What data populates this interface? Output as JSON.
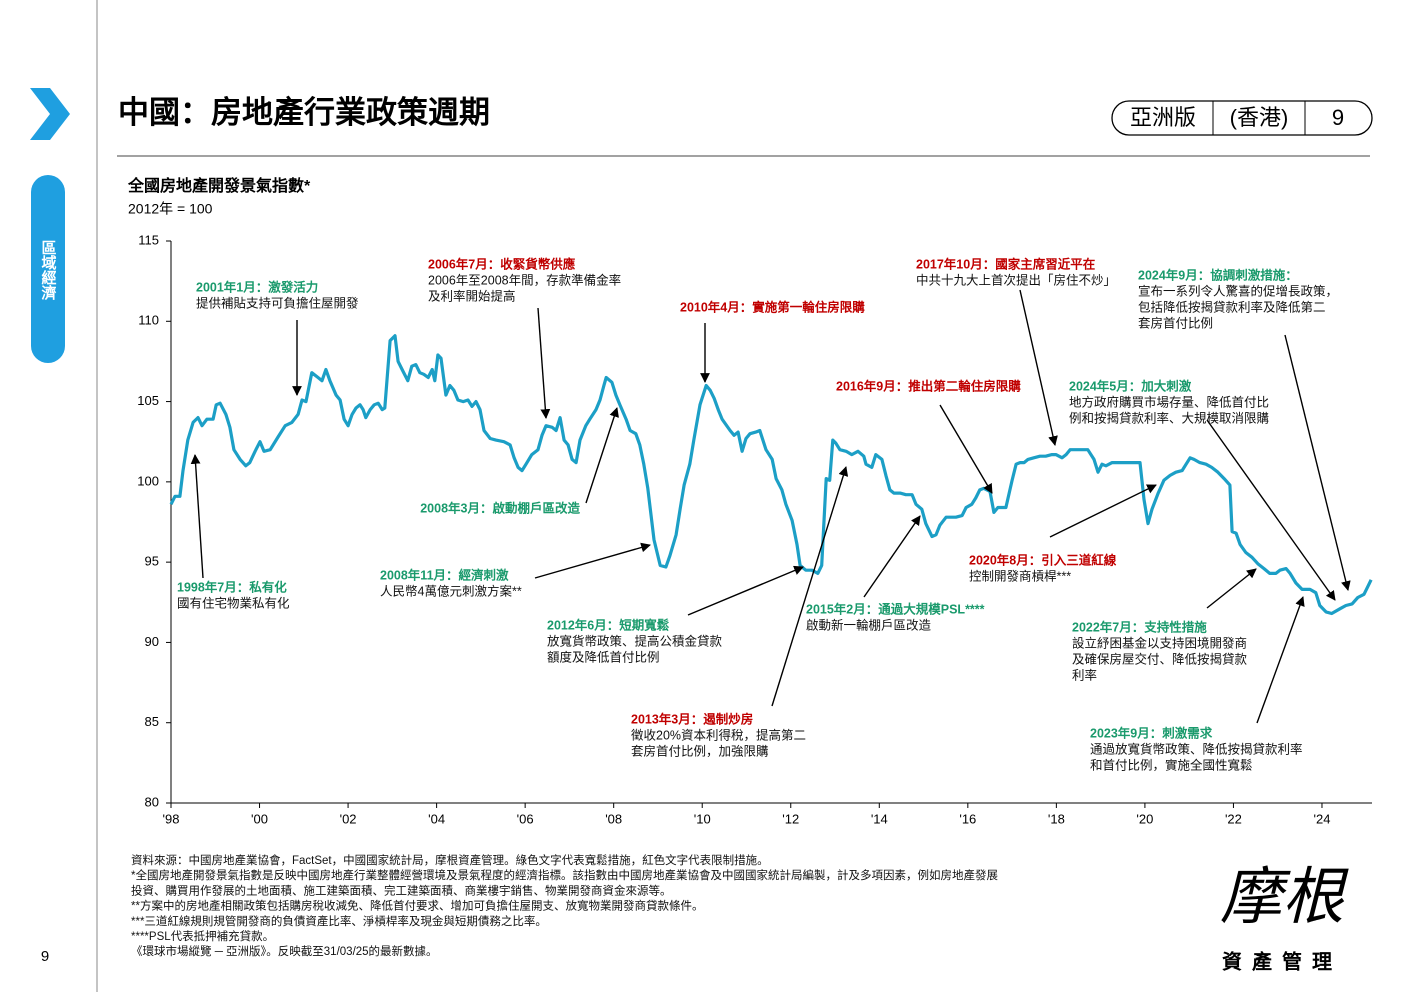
{
  "header": {
    "title": "中國：房地產行業政策週期",
    "edition": "亞洲版",
    "region": "(香港)",
    "page": "9"
  },
  "sidebar": {
    "label": "區域經濟"
  },
  "chart_data": {
    "type": "line",
    "title": "全國房地產開發景氣指數*",
    "subtitle": "2012年 = 100",
    "color": "#1c9fc6",
    "xlim": [
      1998,
      2025.13
    ],
    "ylim": [
      80,
      115
    ],
    "xticks": [
      {
        "value": 1998,
        "label": "'98"
      },
      {
        "value": 2000,
        "label": "'00"
      },
      {
        "value": 2002,
        "label": "'02"
      },
      {
        "value": 2004,
        "label": "'04"
      },
      {
        "value": 2006,
        "label": "'06"
      },
      {
        "value": 2008,
        "label": "'08"
      },
      {
        "value": 2010,
        "label": "'10"
      },
      {
        "value": 2012,
        "label": "'12"
      },
      {
        "value": 2014,
        "label": "'14"
      },
      {
        "value": 2016,
        "label": "'16"
      },
      {
        "value": 2018,
        "label": "'18"
      },
      {
        "value": 2020,
        "label": "'20"
      },
      {
        "value": 2022,
        "label": "'22"
      },
      {
        "value": 2024,
        "label": "'24"
      }
    ],
    "yticks": [
      80,
      85,
      90,
      95,
      100,
      105,
      110,
      115
    ],
    "x": [
      1998.0,
      1998.09,
      1998.2,
      1998.27,
      1998.38,
      1998.5,
      1998.61,
      1998.7,
      1998.81,
      1998.95,
      1999.02,
      1999.11,
      1999.24,
      1999.33,
      1999.42,
      1999.56,
      1999.69,
      1999.78,
      1999.9,
      2000.01,
      2000.1,
      2000.24,
      2000.42,
      2000.58,
      2000.73,
      2000.87,
      2000.96,
      2001.05,
      2001.18,
      2001.32,
      2001.41,
      2001.5,
      2001.59,
      2001.73,
      2001.82,
      2001.91,
      2002.0,
      2002.09,
      2002.18,
      2002.27,
      2002.34,
      2002.4,
      2002.5,
      2002.59,
      2002.68,
      2002.77,
      2002.83,
      2002.95,
      2003.06,
      2003.13,
      2003.22,
      2003.35,
      2003.44,
      2003.53,
      2003.62,
      2003.71,
      2003.81,
      2003.9,
      2003.96,
      2004.03,
      2004.1,
      2004.21,
      2004.3,
      2004.39,
      2004.48,
      2004.6,
      2004.71,
      2004.8,
      2004.89,
      2004.98,
      2005.07,
      2005.21,
      2005.34,
      2005.52,
      2005.66,
      2005.75,
      2005.84,
      2005.93,
      2006.02,
      2006.15,
      2006.29,
      2006.38,
      2006.47,
      2006.61,
      2006.7,
      2006.79,
      2006.88,
      2006.97,
      2007.06,
      2007.15,
      2007.24,
      2007.37,
      2007.46,
      2007.6,
      2007.69,
      2007.78,
      2007.83,
      2007.96,
      2008.05,
      2008.14,
      2008.28,
      2008.37,
      2008.5,
      2008.59,
      2008.68,
      2008.77,
      2008.91,
      2009.05,
      2009.18,
      2009.27,
      2009.41,
      2009.5,
      2009.59,
      2009.72,
      2009.81,
      2009.95,
      2010.09,
      2010.18,
      2010.27,
      2010.36,
      2010.45,
      2010.63,
      2010.72,
      2010.81,
      2010.9,
      2010.99,
      2011.08,
      2011.21,
      2011.3,
      2011.44,
      2011.58,
      2011.67,
      2011.8,
      2011.89,
      2012.03,
      2012.14,
      2012.21,
      2012.34,
      2012.48,
      2012.61,
      2012.7,
      2012.8,
      2012.88,
      2012.95,
      2013.02,
      2013.11,
      2013.25,
      2013.38,
      2013.52,
      2013.65,
      2013.7,
      2013.83,
      2013.92,
      2014.06,
      2014.15,
      2014.24,
      2014.33,
      2014.47,
      2014.6,
      2014.74,
      2014.83,
      2014.96,
      2015.05,
      2015.19,
      2015.28,
      2015.37,
      2015.51,
      2015.6,
      2015.73,
      2015.87,
      2015.96,
      2016.09,
      2016.18,
      2016.27,
      2016.36,
      2016.5,
      2016.59,
      2016.68,
      2016.77,
      2016.86,
      2017.0,
      2017.09,
      2017.18,
      2017.27,
      2017.36,
      2017.49,
      2017.63,
      2017.76,
      2017.9,
      2017.99,
      2018.13,
      2018.22,
      2018.31,
      2018.44,
      2018.58,
      2018.71,
      2018.85,
      2018.94,
      2019.03,
      2019.12,
      2019.26,
      2019.39,
      2019.53,
      2019.66,
      2019.8,
      2019.89,
      2019.98,
      2020.07,
      2020.16,
      2020.3,
      2020.43,
      2020.57,
      2020.7,
      2020.84,
      2020.93,
      2021.02,
      2021.11,
      2021.24,
      2021.38,
      2021.51,
      2021.65,
      2021.79,
      2021.92,
      2021.97,
      2022.06,
      2022.15,
      2022.28,
      2022.42,
      2022.55,
      2022.69,
      2022.82,
      2022.96,
      2023.05,
      2023.19,
      2023.28,
      2023.41,
      2023.55,
      2023.73,
      2023.86,
      2023.95,
      2024.09,
      2024.22,
      2024.41,
      2024.54,
      2024.68,
      2024.81,
      2024.95,
      2025.04,
      2025.11
    ],
    "values": [
      98.6,
      99.1,
      99.1,
      100.7,
      102.6,
      103.7,
      104.0,
      103.5,
      103.9,
      103.9,
      104.8,
      104.9,
      104.2,
      103.4,
      102.0,
      101.4,
      101.0,
      101.2,
      101.9,
      102.5,
      101.9,
      102.0,
      102.8,
      103.5,
      103.7,
      104.2,
      105.1,
      105.0,
      106.8,
      106.5,
      106.3,
      107.0,
      106.3,
      105.4,
      105.1,
      103.9,
      103.5,
      104.2,
      104.6,
      104.8,
      104.5,
      104.0,
      104.5,
      104.8,
      104.9,
      104.5,
      104.6,
      108.8,
      109.1,
      107.5,
      107.0,
      106.3,
      107.2,
      107.3,
      106.8,
      106.7,
      106.5,
      107.0,
      106.3,
      107.9,
      107.7,
      105.4,
      106.0,
      105.7,
      105.1,
      105.0,
      105.1,
      104.7,
      105.0,
      104.5,
      103.2,
      102.7,
      102.6,
      102.5,
      102.3,
      101.5,
      100.9,
      100.7,
      101.1,
      101.7,
      102.0,
      102.9,
      103.5,
      103.4,
      103.2,
      104.0,
      102.6,
      102.3,
      101.4,
      101.2,
      102.6,
      103.5,
      103.9,
      104.5,
      105.1,
      106.0,
      106.5,
      106.2,
      105.4,
      104.8,
      103.9,
      103.2,
      103.0,
      102.3,
      101.1,
      99.6,
      96.4,
      94.8,
      94.7,
      95.4,
      96.7,
      98.3,
      99.8,
      101.1,
      102.6,
      104.8,
      106.0,
      105.7,
      105.2,
      104.5,
      103.9,
      103.2,
      102.9,
      103.1,
      101.9,
      102.7,
      103.0,
      103.1,
      103.2,
      102.0,
      101.4,
      100.2,
      99.5,
      98.6,
      97.6,
      96.1,
      94.8,
      94.5,
      94.5,
      94.3,
      94.8,
      100.2,
      100.1,
      102.6,
      102.4,
      102.0,
      101.9,
      101.7,
      101.9,
      101.6,
      101.1,
      100.9,
      101.7,
      101.4,
      100.4,
      99.5,
      99.3,
      99.3,
      99.2,
      99.2,
      98.6,
      98.3,
      97.4,
      96.6,
      96.7,
      97.3,
      97.8,
      97.8,
      97.8,
      97.9,
      98.4,
      98.6,
      99.0,
      99.5,
      99.6,
      99.4,
      98.1,
      98.4,
      98.4,
      98.4,
      100.1,
      101.1,
      101.2,
      101.2,
      101.4,
      101.5,
      101.6,
      101.6,
      101.7,
      101.7,
      101.5,
      101.7,
      102.0,
      102.0,
      102.0,
      102.0,
      101.4,
      100.6,
      101.1,
      101.0,
      101.2,
      101.2,
      101.2,
      101.2,
      101.2,
      101.2,
      98.9,
      97.4,
      98.3,
      99.3,
      100.1,
      100.4,
      100.6,
      100.7,
      101.1,
      101.5,
      101.4,
      101.2,
      101.1,
      100.9,
      100.6,
      100.2,
      99.8,
      96.9,
      96.8,
      96.1,
      95.6,
      95.3,
      94.9,
      94.6,
      94.3,
      94.3,
      94.5,
      94.6,
      94.3,
      93.7,
      93.3,
      93.3,
      93.1,
      92.3,
      91.9,
      91.8,
      92.1,
      92.3,
      92.4,
      92.8,
      93.0,
      93.5,
      93.9
    ],
    "annotations": [
      {
        "title": "1998年7月：私有化",
        "text": [
          "國有住宅物業私有化"
        ],
        "color": "#1a9a6c"
      },
      {
        "title": "2001年1月：激發活力",
        "text": [
          "提供補貼支持可負擔住屋開發"
        ],
        "color": "#1a9a6c"
      },
      {
        "title": "2006年7月：收緊貨幣供應",
        "text": [
          "2006年至2008年間，存款準備金率",
          "及利率開始提高"
        ],
        "color": "#c00000"
      },
      {
        "title": "2008年3月：啟動棚戶區改造",
        "text": [],
        "color": "#1a9a6c"
      },
      {
        "title": "2008年11月：經濟刺激",
        "text": [
          "人民幣4萬億元刺激方案**"
        ],
        "color": "#1a9a6c"
      },
      {
        "title": "2010年4月：實施第一輪住房限購",
        "text": [],
        "color": "#c00000"
      },
      {
        "title": "2012年6月：短期寬鬆",
        "text": [
          "放寬貨幣政策、提高公積金貸款",
          "額度及降低首付比例"
        ],
        "color": "#1a9a6c"
      },
      {
        "title": "2013年3月：遏制炒房",
        "text": [
          "徵收20%資本利得稅，提高第二",
          "套房首付比例，加強限購"
        ],
        "color": "#c00000"
      },
      {
        "title": "2015年2月：通過大規模PSL****",
        "text": [
          "啟動新一輪棚戶區改造"
        ],
        "color": "#1a9a6c"
      },
      {
        "title": "2016年9月：推出第二輪住房限購",
        "text": [],
        "color": "#c00000"
      },
      {
        "title": "2017年10月：國家主席習近平在",
        "text": [
          "中共十九大上首次提出「房住不炒」"
        ],
        "color": "#c00000"
      },
      {
        "title": "2020年8月：引入三道紅線",
        "text": [
          "控制開發商槓桿***"
        ],
        "color": "#c00000"
      },
      {
        "title": "2022年7月：支持性措施",
        "text": [
          "設立紓困基金以支持困境開發商",
          "及確保房屋交付、降低按揭貸款",
          "利率"
        ],
        "color": "#1a9a6c"
      },
      {
        "title": "2023年9月：刺激需求",
        "text": [
          "通過放寬貨幣政策、降低按揭貸款利率",
          "和首付比例，實施全國性寬鬆"
        ],
        "color": "#1a9a6c"
      },
      {
        "title": "2024年5月：加大刺激",
        "text": [
          "地方政府購買市場存量、降低首付比",
          "例和按揭貸款利率、大規模取消限購"
        ],
        "color": "#1a9a6c"
      },
      {
        "title": "2024年9月：協調刺激措施：",
        "text": [
          "宣布一系列令人驚喜的促增長政策，",
          "包括降低按揭貸款利率及降低第二",
          "套房首付比例"
        ],
        "color": "#1a9a6c"
      }
    ]
  },
  "footnotes": [
    "資料來源：中國房地產業協會，FactSet，中國國家統計局，摩根資產管理。綠色文字代表寬鬆措施，紅色文字代表限制措施。",
    "*全國房地產開發景氣指數是反映中國房地產行業整體經營環境及景氣程度的經濟指標。該指數由中國房地產業協會及中國國家統計局編製，計及多項因素，例如房地產發展",
    "投資、購買用作發展的土地面積、施工建築面積、完工建築面積、商業樓宇銷售、物業開發商資金來源等。",
    "**方案中的房地產相關政策包括購房稅收減免、降低首付要求、增加可負擔住屋開支、放寬物業開發商貸款條件。",
    "***三道紅線規則規管開發商的負債資產比率、淨槓桿率及現金與短期債務之比率。",
    "****PSL代表抵押補充貸款。",
    "《環球市場縱覽 ─ 亞洲版》。反映截至31/03/25的最新數據。"
  ],
  "footer": {
    "page_number": "9",
    "logo_main": "摩根",
    "logo_sub": "資產管理"
  }
}
